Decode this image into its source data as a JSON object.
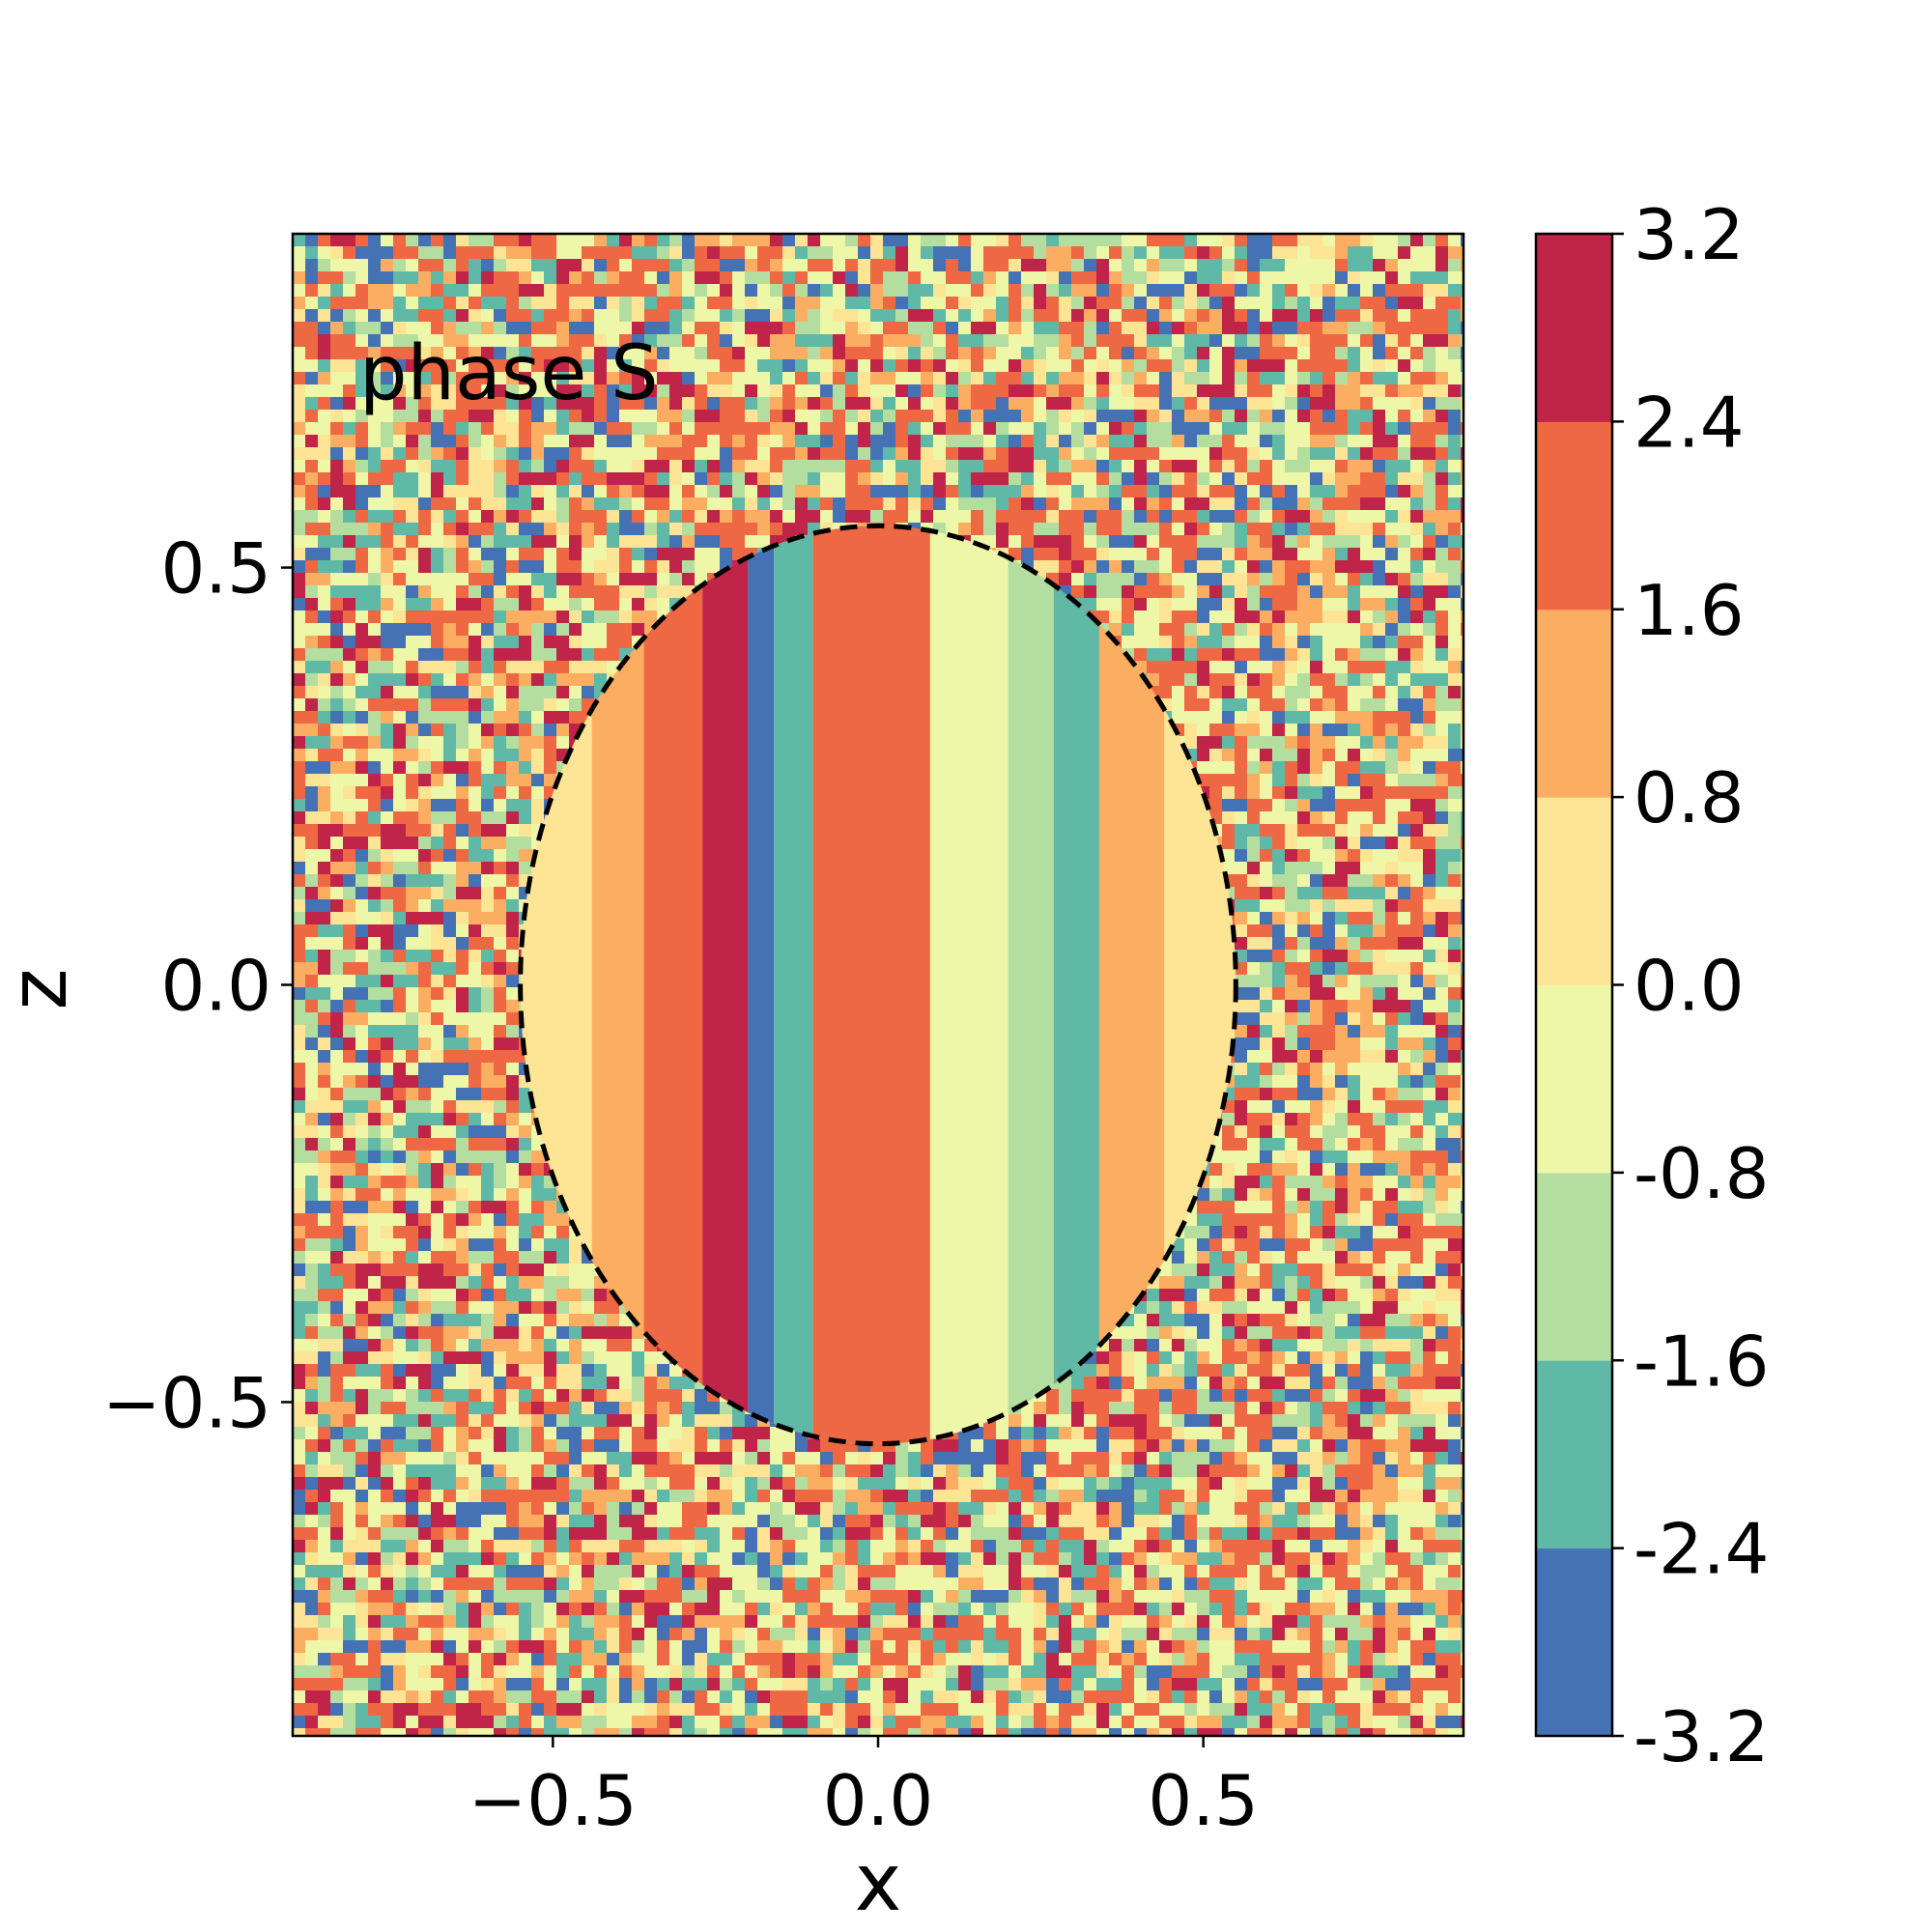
{
  "chart_data": {
    "type": "heatmap",
    "annotation": "phase S",
    "xlabel": "x",
    "ylabel": "z",
    "xlim": [
      -0.9,
      0.9
    ],
    "ylim": [
      -0.9,
      0.9
    ],
    "x_ticks": [
      {
        "value": -0.5,
        "label": "−0.5"
      },
      {
        "value": 0.0,
        "label": "0.0"
      },
      {
        "value": 0.5,
        "label": "0.5"
      }
    ],
    "y_ticks": [
      {
        "value": 0.5,
        "label": "0.5"
      },
      {
        "value": 0.0,
        "label": "0.0"
      },
      {
        "value": -0.5,
        "label": "−0.5"
      }
    ],
    "colorbar": {
      "levels": [
        -3.2,
        -2.4,
        -1.6,
        -0.8,
        0.0,
        0.8,
        1.6,
        2.4,
        3.2
      ],
      "labels": [
        "-3.2",
        "-2.4",
        "-1.6",
        "-0.8",
        "0.0",
        "0.8",
        "1.6",
        "2.4",
        "3.2"
      ],
      "colors": [
        "#4472b4",
        "#5fb9a6",
        "#b4dea0",
        "#eef7a8",
        "#fde595",
        "#fbae61",
        "#ee6844",
        "#c02448"
      ]
    },
    "circle": {
      "center": [
        0.0,
        0.0
      ],
      "radius": 0.55,
      "style": "dashed"
    },
    "stripes": [
      {
        "x_from": -0.55,
        "x_to": -0.44,
        "value": 0.4
      },
      {
        "x_from": -0.44,
        "x_to": -0.36,
        "value": 1.2
      },
      {
        "x_from": -0.36,
        "x_to": -0.27,
        "value": 2.0
      },
      {
        "x_from": -0.27,
        "x_to": -0.2,
        "value": 2.8
      },
      {
        "x_from": -0.2,
        "x_to": -0.16,
        "value": -2.8
      },
      {
        "x_from": -0.16,
        "x_to": -0.1,
        "value": -2.0
      },
      {
        "x_from": -0.1,
        "x_to": 0.08,
        "value": 2.0
      },
      {
        "x_from": 0.08,
        "x_to": 0.2,
        "value": -0.4
      },
      {
        "x_from": 0.2,
        "x_to": 0.27,
        "value": -1.2
      },
      {
        "x_from": 0.27,
        "x_to": 0.34,
        "value": -2.0
      },
      {
        "x_from": 0.34,
        "x_to": 0.44,
        "value": 1.2
      },
      {
        "x_from": 0.44,
        "x_to": 0.55,
        "value": 0.4
      }
    ]
  }
}
